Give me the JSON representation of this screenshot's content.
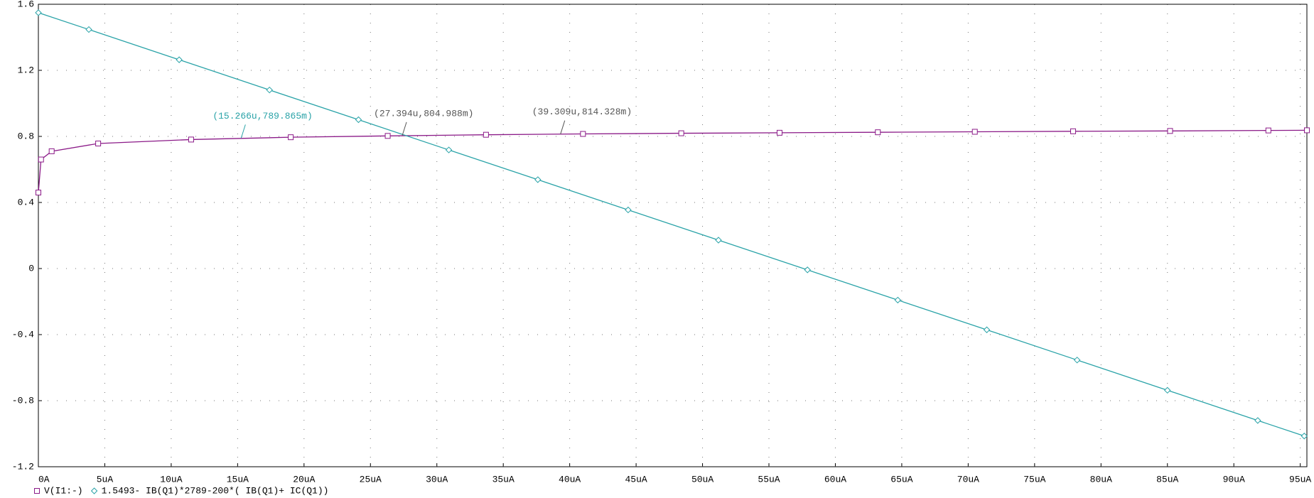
{
  "chart_data": {
    "type": "line",
    "xlim": [
      0,
      95.5
    ],
    "ylim": [
      -1.2,
      1.6
    ],
    "xticks": [
      {
        "value": 0,
        "label": "0A"
      },
      {
        "value": 5,
        "label": "5uA"
      },
      {
        "value": 10,
        "label": "10uA"
      },
      {
        "value": 15,
        "label": "15uA"
      },
      {
        "value": 20,
        "label": "20uA"
      },
      {
        "value": 25,
        "label": "25uA"
      },
      {
        "value": 30,
        "label": "30uA"
      },
      {
        "value": 35,
        "label": "35uA"
      },
      {
        "value": 40,
        "label": "40uA"
      },
      {
        "value": 45,
        "label": "45uA"
      },
      {
        "value": 50,
        "label": "50uA"
      },
      {
        "value": 55,
        "label": "55uA"
      },
      {
        "value": 60,
        "label": "60uA"
      },
      {
        "value": 65,
        "label": "65uA"
      },
      {
        "value": 70,
        "label": "70uA"
      },
      {
        "value": 75,
        "label": "75uA"
      },
      {
        "value": 80,
        "label": "80uA"
      },
      {
        "value": 85,
        "label": "85uA"
      },
      {
        "value": 90,
        "label": "90uA"
      },
      {
        "value": 95,
        "label": "95uA"
      }
    ],
    "yticks": [
      -1.2,
      -0.8,
      -0.4,
      0,
      0.4,
      0.8,
      1.2,
      1.6
    ],
    "grid": true,
    "series": [
      {
        "name": "V(I1:-)",
        "color": "#8b1a88",
        "marker": "square",
        "x": [
          0,
          0.2,
          1,
          4.5,
          11.5,
          19,
          26.3,
          33.7,
          41,
          48.4,
          55.8,
          63.2,
          70.5,
          77.9,
          85.2,
          92.6,
          95.5
        ],
        "values": [
          0.46,
          0.66,
          0.71,
          0.757,
          0.781,
          0.795,
          0.803,
          0.81,
          0.815,
          0.819,
          0.822,
          0.825,
          0.828,
          0.831,
          0.833,
          0.836,
          0.837
        ]
      },
      {
        "name": "1.5493- IB(Q1)*2789-200*( IB(Q1)+ IC(Q1))",
        "color": "#2aa3a8",
        "marker": "diamond",
        "x": [
          0,
          3.8,
          10.6,
          17.4,
          24.1,
          30.9,
          37.6,
          44.4,
          51.2,
          57.9,
          64.7,
          71.4,
          78.2,
          85,
          91.8,
          95.3
        ],
        "values": [
          1.549,
          1.447,
          1.264,
          1.081,
          0.901,
          0.718,
          0.538,
          0.355,
          0.172,
          -0.008,
          -0.191,
          -0.371,
          -0.554,
          -0.737,
          -0.92,
          -1.014
        ]
      }
    ],
    "annotations": [
      {
        "label": "(15.266u,789.865m)",
        "x": 15.266,
        "y": 0.789865,
        "color": "#2aa3a8"
      },
      {
        "label": "(27.394u,804.988m)",
        "x": 27.394,
        "y": 0.804988,
        "color": "#555555"
      },
      {
        "label": "(39.309u,814.328m)",
        "x": 39.309,
        "y": 0.814328,
        "color": "#555555"
      }
    ]
  }
}
